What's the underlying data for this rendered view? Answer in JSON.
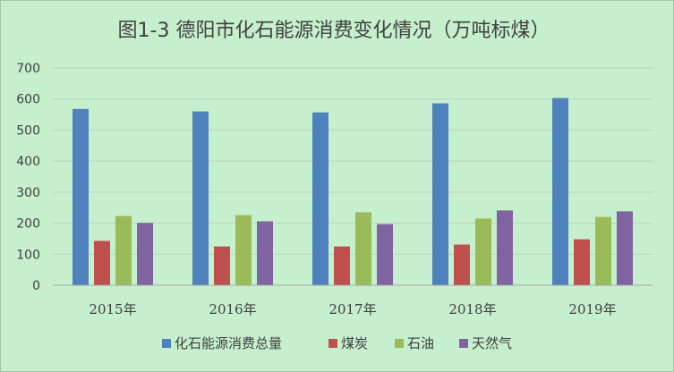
{
  "chart_data": {
    "type": "bar",
    "title": "图1-3  德阳市化石能源消费变化情况（万吨标煤）",
    "categories": [
      "2015年",
      "2016年",
      "2017年",
      "2018年",
      "2019年"
    ],
    "series": [
      {
        "name": "化石能源消费总量",
        "color": "#4f81bd",
        "values": [
          568,
          560,
          557,
          586,
          603
        ]
      },
      {
        "name": "煤炭",
        "color": "#c0504d",
        "values": [
          143,
          125,
          125,
          131,
          148
        ]
      },
      {
        "name": "石油",
        "color": "#9bbb59",
        "values": [
          223,
          226,
          235,
          215,
          220
        ]
      },
      {
        "name": "天然气",
        "color": "#8064a2",
        "values": [
          201,
          206,
          197,
          241,
          238
        ]
      }
    ],
    "y_ticks": [
      "0",
      "100",
      "200",
      "300",
      "400",
      "500",
      "600",
      "700"
    ],
    "ylim": [
      0,
      700
    ],
    "grid": true,
    "legend_position": "bottom"
  }
}
